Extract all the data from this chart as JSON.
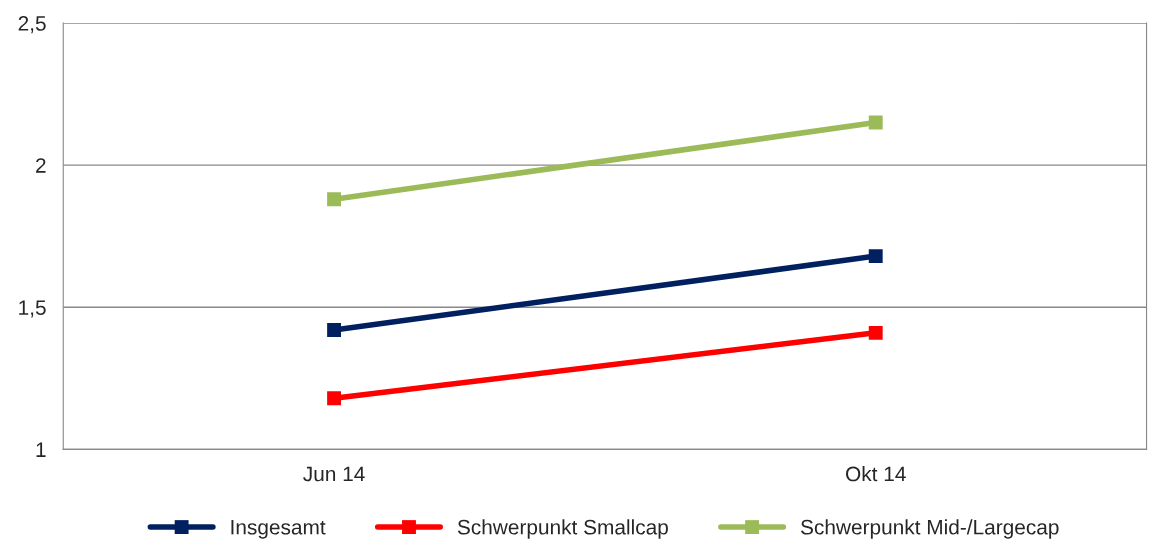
{
  "chart_data": {
    "type": "line",
    "categories": [
      "Jun 14",
      "Okt 14"
    ],
    "series": [
      {
        "name": "Insgesamt",
        "color": "#002060",
        "values": [
          1.42,
          1.68
        ]
      },
      {
        "name": "Schwerpunkt Smallcap",
        "color": "#ff0000",
        "values": [
          1.18,
          1.41
        ]
      },
      {
        "name": "Schwerpunkt Mid-/Largecap",
        "color": "#9bbb59",
        "values": [
          1.88,
          2.15
        ]
      }
    ],
    "ylim": [
      1,
      2.5
    ],
    "yticks": [
      1,
      {
        "value": 1.5,
        "label": "1,5"
      },
      2,
      {
        "value": 2.5,
        "label": "2,5"
      }
    ],
    "grid": "y",
    "legend": "bottom",
    "marker": "square",
    "line_style": "solid"
  }
}
